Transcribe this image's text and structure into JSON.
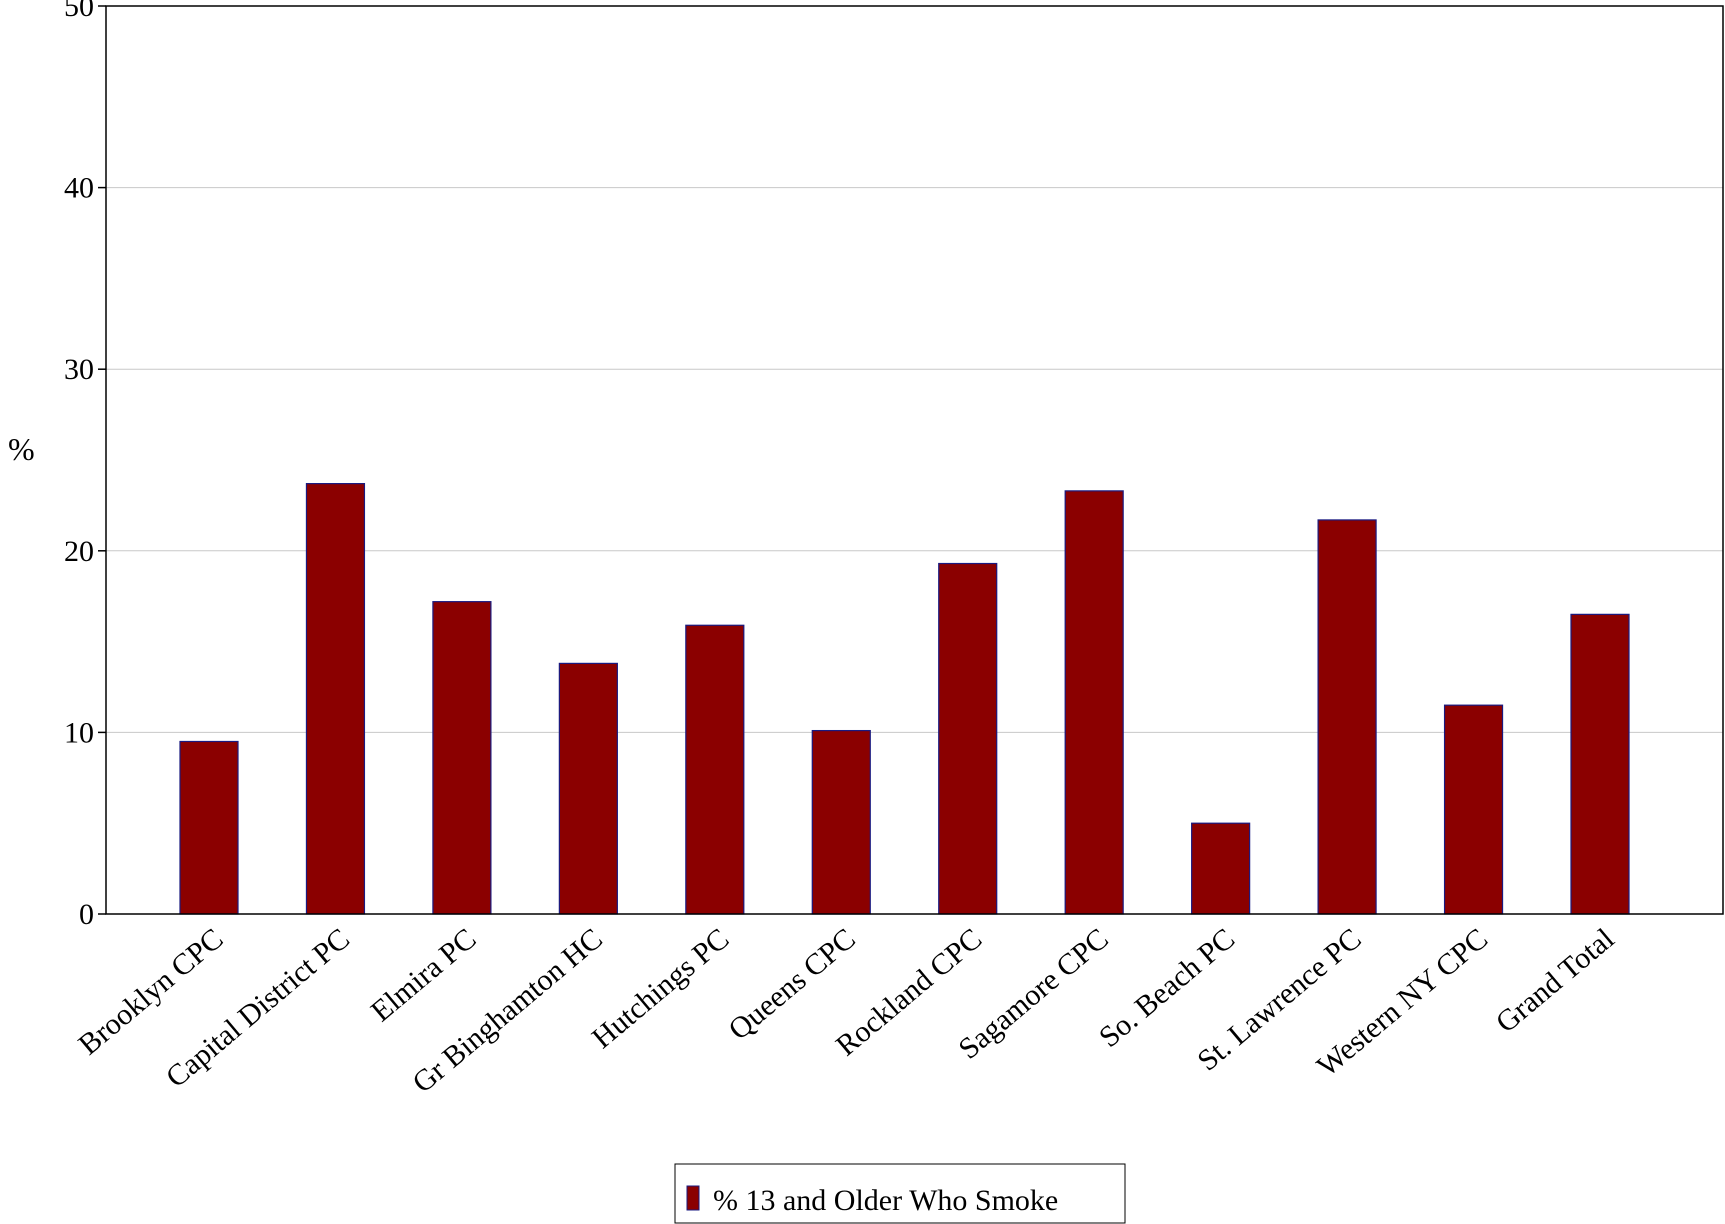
{
  "chart_data": {
    "type": "bar",
    "title": "",
    "xlabel": "",
    "ylabel": "%",
    "ylim": [
      0,
      50
    ],
    "yticks": [
      0,
      10,
      20,
      30,
      40,
      50
    ],
    "grid": true,
    "legend_position": "bottom-center",
    "categories": [
      "Brooklyn CPC",
      "Capital District PC",
      "Elmira PC",
      "Gr Binghamton HC",
      "Hutchings PC",
      "Queens CPC",
      "Rockland CPC",
      "Sagamore CPC",
      "So. Beach PC",
      "St. Lawrence PC",
      "Western NY CPC",
      "Grand Total"
    ],
    "series": [
      {
        "name": "% 13 and Older Who Smoke",
        "color": "#8b0000",
        "values": [
          9.5,
          23.7,
          17.2,
          13.8,
          15.9,
          10.1,
          19.3,
          23.3,
          5.0,
          21.7,
          11.5,
          16.5
        ]
      }
    ]
  }
}
